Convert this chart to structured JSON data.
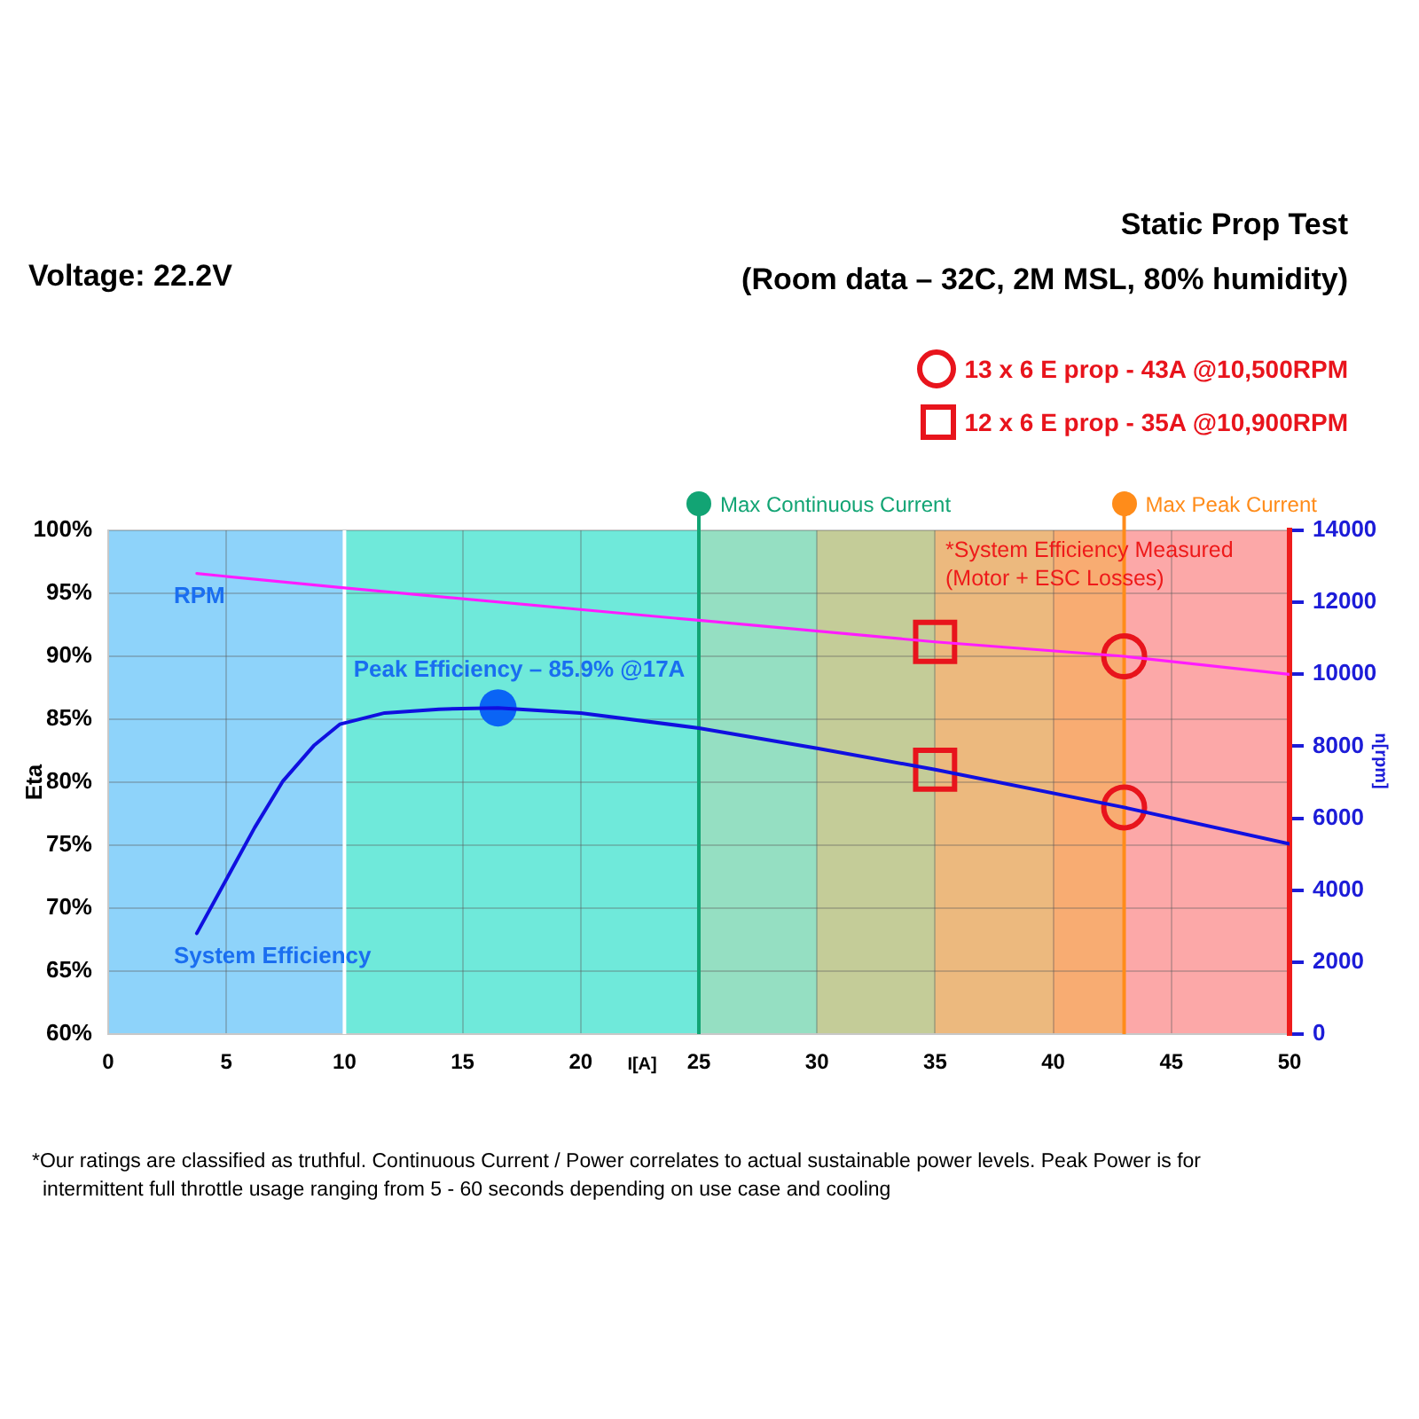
{
  "chart_data": {
    "type": "line",
    "title": "Static Prop Test",
    "subtitle": "(Room data – 32C, 2M MSL, 80% humidity)",
    "xlabel": "I[A]",
    "ylabel": "Eta",
    "y2label": "n[rpm]",
    "annotations": [
      "Voltage: 22.2V",
      "*System Efficiency Measured (Motor + ESC Losses)",
      {
        "text": "Peak Efficiency – 85.9% @17A",
        "x": 16.5,
        "y": 85.9
      },
      "*Our ratings are classified as truthful. Continuous Current / Power correlates to actual sustainable power levels. Peak Power is for intermittent full throttle usage ranging from 5 - 60 seconds depending on use case and cooling"
    ],
    "xlim": [
      0,
      50
    ],
    "xticks": [
      0,
      5,
      10,
      15,
      20,
      25,
      30,
      35,
      40,
      45,
      50
    ],
    "ylim": [
      60,
      100
    ],
    "yticks": [
      {
        "value": 60,
        "label": "60%"
      },
      {
        "value": 65,
        "label": "65%"
      },
      {
        "value": 70,
        "label": "70%"
      },
      {
        "value": 75,
        "label": "75%"
      },
      {
        "value": 80,
        "label": "80%"
      },
      {
        "value": 85,
        "label": "85%"
      },
      {
        "value": 90,
        "label": "90%"
      },
      {
        "value": 95,
        "label": "95%"
      },
      {
        "value": 100,
        "label": "100%"
      }
    ],
    "y2lim": [
      0,
      14000
    ],
    "y2ticks": [
      0,
      2000,
      4000,
      6000,
      8000,
      10000,
      12000,
      14000
    ],
    "grid": true,
    "legend": "top right",
    "bands": [
      {
        "axis": "x",
        "from": 0,
        "to": 10,
        "color": "#8ed3fa"
      },
      {
        "axis": "x",
        "from": 10,
        "to": 25,
        "color": "#6fe9da"
      },
      {
        "axis": "x",
        "from": 25,
        "to": 30,
        "color": "#95dfc2"
      },
      {
        "axis": "x",
        "from": 30,
        "to": 35,
        "color": "#c4cc98"
      },
      {
        "axis": "x",
        "from": 35,
        "to": 40,
        "color": "#ecb97e"
      },
      {
        "axis": "x",
        "from": 40,
        "to": 43,
        "color": "#f8ac72"
      },
      {
        "axis": "x",
        "from": 43,
        "to": 50,
        "color": "#fca8a8"
      }
    ],
    "ref_lines": [
      {
        "axis": "x",
        "value": 10,
        "color": "#ffffff"
      },
      {
        "axis": "x",
        "value": 25,
        "label": "Max Continuous Current",
        "color": "#12a474"
      },
      {
        "axis": "x",
        "value": 43,
        "label": "Max Peak Current",
        "color": "#ff8c1a"
      }
    ],
    "series": [
      {
        "name": "System Efficiency",
        "type": "line",
        "color": "#1010e0",
        "marker": "none",
        "x": [
          3.75,
          6.2,
          7.4,
          8.7,
          9.8,
          11.7,
          14,
          16.5,
          20,
          25,
          30,
          35,
          43,
          50
        ],
        "values": [
          68,
          76.4,
          80.1,
          82.9,
          84.6,
          85.5,
          85.8,
          85.9,
          85.5,
          84.3,
          82.7,
          81,
          78,
          75.1
        ]
      },
      {
        "name": "RPM",
        "type": "line",
        "axis": "y2",
        "color": "#ff1cff",
        "marker": "none",
        "x": [
          3.75,
          10,
          25,
          35,
          43,
          50
        ],
        "values": [
          12800,
          12400,
          11500,
          10900,
          10500,
          10000
        ]
      },
      {
        "type": "scatter",
        "color": "#0a64f5",
        "marker": "circle",
        "x": [
          16.5
        ],
        "values": [
          85.9
        ]
      },
      {
        "name": "13 x 6 E prop - 43A @10,500RPM",
        "type": "scatter",
        "color": "#e8141c",
        "marker": "circle",
        "x": [
          43
        ],
        "values": [
          78
        ]
      },
      {
        "type": "scatter",
        "axis": "y2",
        "color": "#e8141c",
        "marker": "circle",
        "x": [
          43
        ],
        "values": [
          10500
        ]
      },
      {
        "name": "12 x 6 E prop - 35A @10,900RPM",
        "type": "scatter",
        "color": "#e8141c",
        "marker": "square",
        "x": [
          35
        ],
        "values": [
          81
        ]
      },
      {
        "type": "scatter",
        "axis": "y2",
        "color": "#e8141c",
        "marker": "square",
        "x": [
          35
        ],
        "values": [
          10900
        ]
      }
    ]
  }
}
